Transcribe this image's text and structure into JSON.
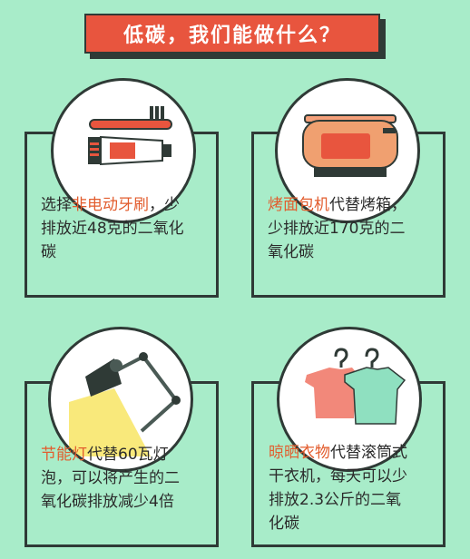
{
  "header": {
    "title": "低碳，我们能做什么？"
  },
  "cards": [
    {
      "id": "toothbrush",
      "highlight": "非电动牙刷",
      "line1_pre": "选择",
      "line1_post": "，少",
      "line2": "排放近48克的二氧化",
      "line3": "碳"
    },
    {
      "id": "toaster",
      "highlight": "烤面包机",
      "line1_post": "代替烤箱，",
      "line2": "少排放近170克的二",
      "line3": "氧化碳"
    },
    {
      "id": "lamp",
      "highlight": "节能灯",
      "line1_post": "代替60瓦灯",
      "line2": "泡，可以将产生的二",
      "line3": "氧化碳排放减少4倍"
    },
    {
      "id": "clothes",
      "highlight": "晾晒衣物",
      "line1_post": "代替滚筒式",
      "line2": "干衣机，每天可以少",
      "line3": "排放2.3公斤的二氧",
      "line4": "化碳"
    }
  ],
  "icons": {
    "toothbrush": "toothbrush-icon",
    "toothpaste": "toothpaste-icon",
    "toaster": "toaster-icon",
    "lamp": "desk-lamp-icon",
    "clothes": "clothes-hanger-icon"
  },
  "colors": {
    "background": "#a8ecc9",
    "accent": "#e8553e",
    "highlight_text": "#e25c2d",
    "outline": "#2f3a36"
  }
}
